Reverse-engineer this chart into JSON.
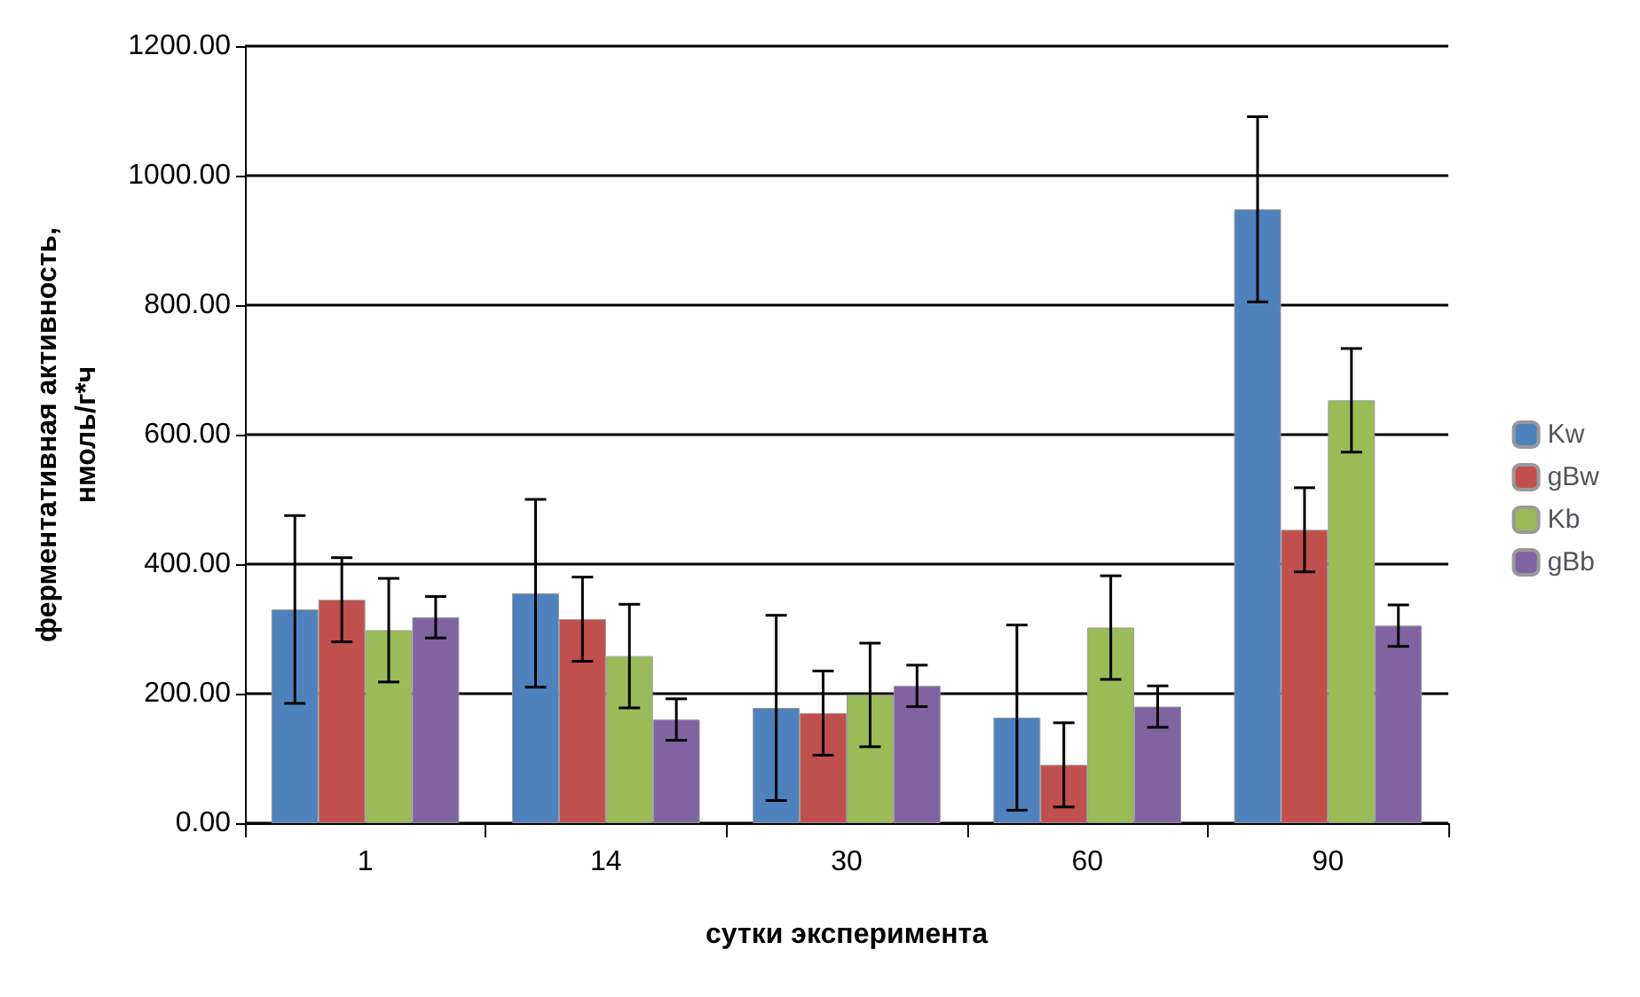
{
  "chart_data": {
    "type": "bar",
    "xlabel": "сутки эксперимента",
    "ylabel": "ферментативная активность,\nнмоль/г*ч",
    "categories": [
      "1",
      "14",
      "30",
      "60",
      "90"
    ],
    "series": [
      {
        "name": "Kw",
        "color": "#4f81bd",
        "values": [
          330,
          355,
          178,
          163,
          948
        ],
        "errors": [
          145,
          145,
          143,
          143,
          143
        ]
      },
      {
        "name": "gBw",
        "color": "#c0504d",
        "values": [
          345,
          315,
          170,
          90,
          453
        ],
        "errors": [
          65,
          65,
          65,
          65,
          65
        ]
      },
      {
        "name": "Kb",
        "color": "#9bbb59",
        "values": [
          298,
          258,
          198,
          302,
          653
        ],
        "errors": [
          80,
          80,
          80,
          80,
          80
        ]
      },
      {
        "name": "gBb",
        "color": "#8064a2",
        "values": [
          318,
          160,
          212,
          180,
          305
        ],
        "errors": [
          32,
          32,
          32,
          32,
          32
        ]
      }
    ],
    "ylim": [
      0,
      1200
    ],
    "yticks": [
      {
        "value": 0,
        "label": "0.00"
      },
      {
        "value": 200,
        "label": "200.00"
      },
      {
        "value": 400,
        "label": "400.00"
      },
      {
        "value": 600,
        "label": "600.00"
      },
      {
        "value": 800,
        "label": "800.00"
      },
      {
        "value": 1000,
        "label": "1000.00"
      },
      {
        "value": 1200,
        "label": "1200.00"
      }
    ],
    "grid": "y",
    "legend": "right"
  }
}
